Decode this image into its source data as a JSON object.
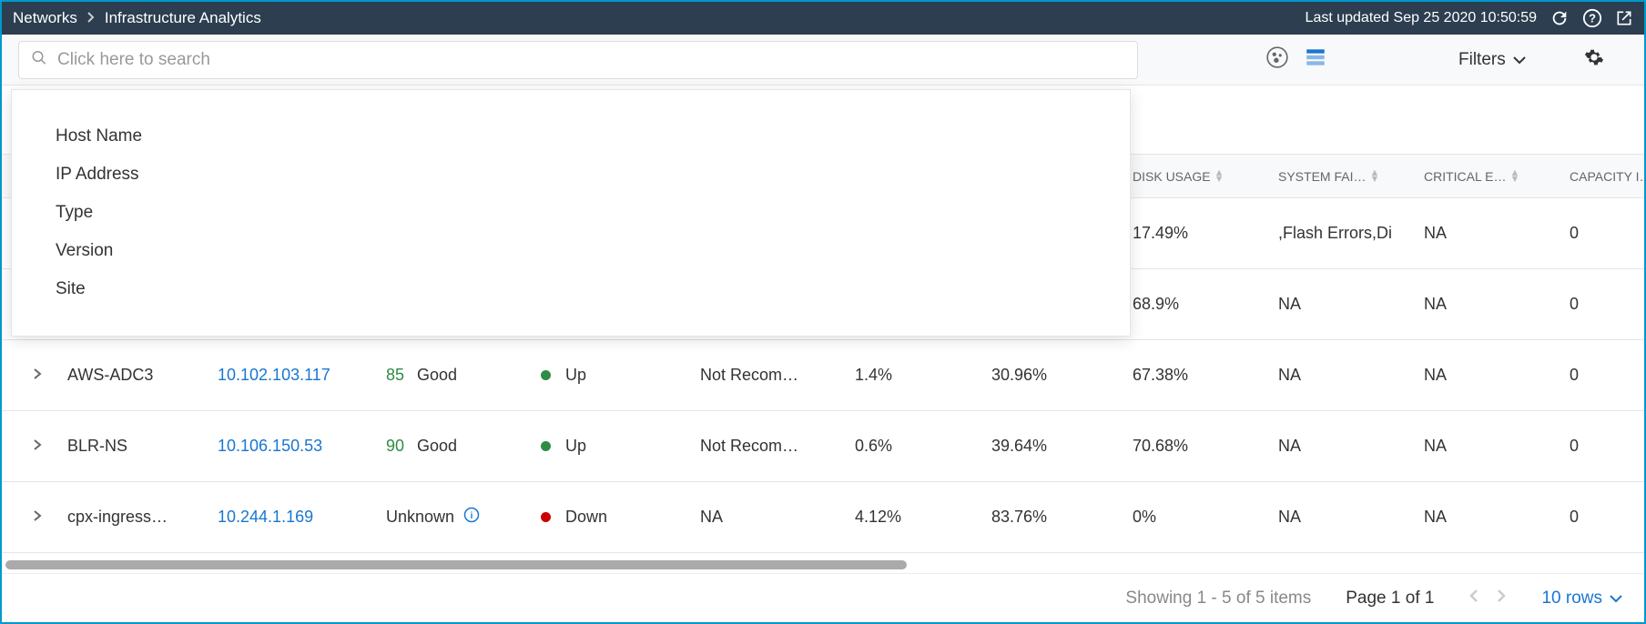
{
  "breadcrumb": {
    "root": "Networks",
    "current": "Infrastructure Analytics"
  },
  "topbar": {
    "last_updated": "Last updated Sep 25 2020 10:50:59"
  },
  "search": {
    "placeholder": "Click here to search"
  },
  "toolbar": {
    "filters_label": "Filters"
  },
  "dropdown": {
    "items": [
      "Host Name",
      "IP Address",
      "Type",
      "Version",
      "Site"
    ]
  },
  "columns": {
    "disk": "DISK USAGE",
    "sys": "SYSTEM FAI…",
    "crit": "CRITICAL E…",
    "cap": "CAPACITY ISS…"
  },
  "rows": [
    {
      "host": "",
      "ip": "",
      "score": "",
      "score_label": "",
      "state": "",
      "state_color": "",
      "upgrade": "",
      "cpu": "",
      "mem": "",
      "disk": "17.49%",
      "sys": ",Flash Errors,Di",
      "crit": "NA",
      "cap": "0"
    },
    {
      "host": "",
      "ip": "",
      "score": "",
      "score_label": "",
      "state": "",
      "state_color": "",
      "upgrade": "",
      "cpu": "",
      "mem": "",
      "disk": "68.9%",
      "sys": "NA",
      "crit": "NA",
      "cap": "0"
    },
    {
      "host": "AWS-ADC3",
      "ip": "10.102.103.117",
      "score": "85",
      "score_label": "Good",
      "state": "Up",
      "state_color": "green",
      "upgrade": "Not Recom…",
      "cpu": "1.4%",
      "mem": "30.96%",
      "disk": "67.38%",
      "sys": "NA",
      "crit": "NA",
      "cap": "0"
    },
    {
      "host": "BLR-NS",
      "ip": "10.106.150.53",
      "score": "90",
      "score_label": "Good",
      "state": "Up",
      "state_color": "green",
      "upgrade": "Not Recom…",
      "cpu": "0.6%",
      "mem": "39.64%",
      "disk": "70.68%",
      "sys": "NA",
      "crit": "NA",
      "cap": "0"
    },
    {
      "host": "cpx-ingress…",
      "ip": "10.244.1.169",
      "score": "",
      "score_label": "Unknown",
      "state": "Down",
      "state_color": "red",
      "upgrade": "NA",
      "cpu": "4.12%",
      "mem": "83.76%",
      "disk": "0%",
      "sys": "NA",
      "crit": "NA",
      "cap": "0",
      "unknown_info": true
    }
  ],
  "footer": {
    "showing": "Showing 1 - 5 of 5 items",
    "page_prefix": "Page ",
    "page_current": "1",
    "page_of": " of 1",
    "rows_label": "10 rows"
  },
  "colors": {
    "topbar_bg": "#2c3e50",
    "link": "#1976d2",
    "good": "#2f8c44",
    "down": "#cc0000",
    "border": "#e5e5e5"
  }
}
